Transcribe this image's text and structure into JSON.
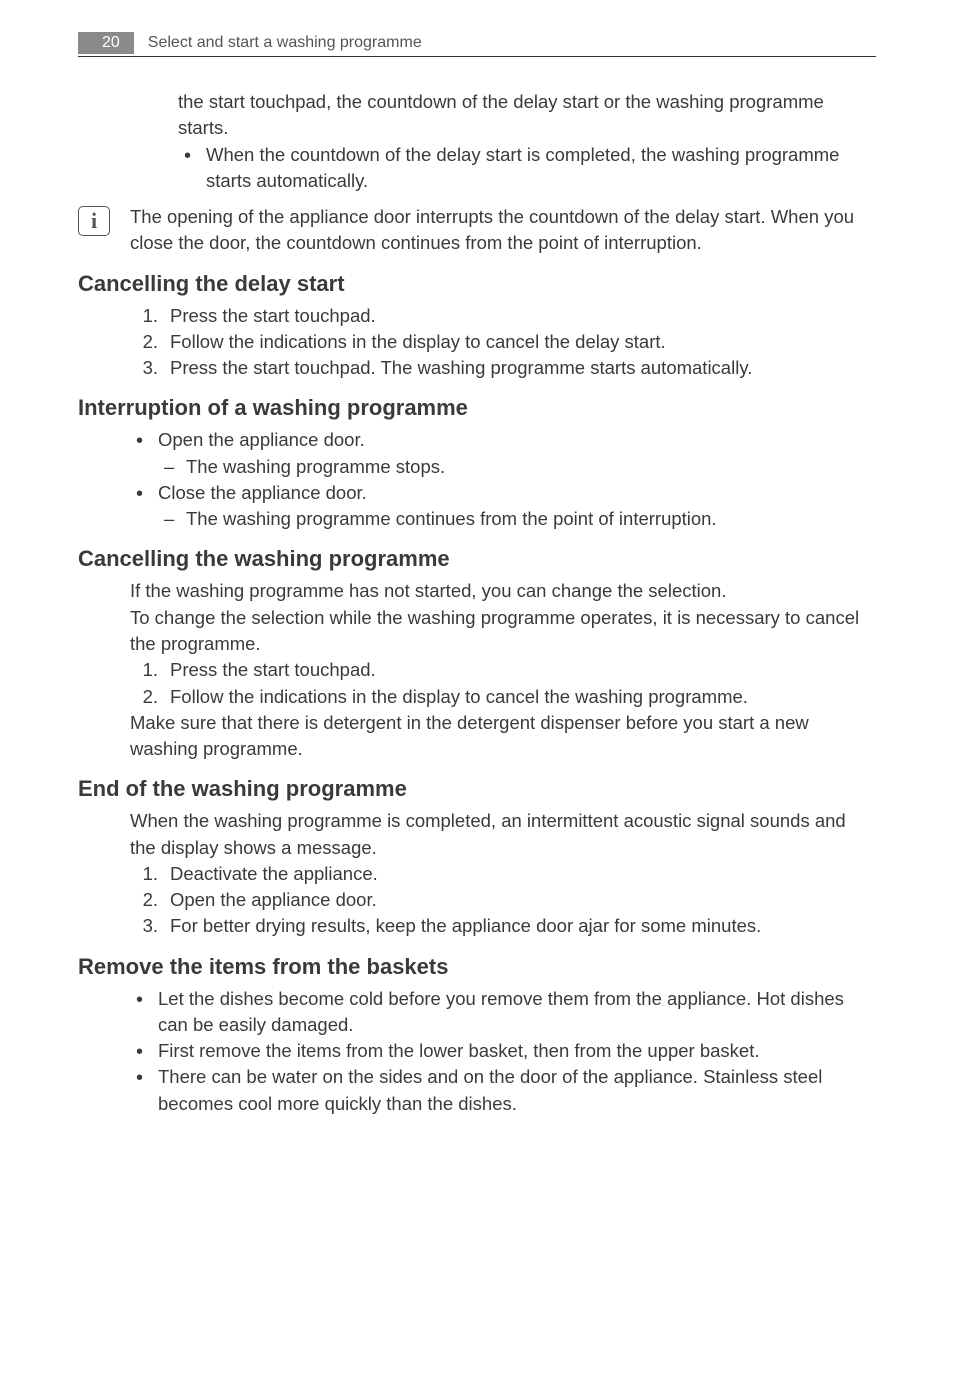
{
  "page": {
    "number": "20",
    "header_title": "Select and start a washing programme"
  },
  "intro": {
    "continuation": "the start touchpad, the countdown of the delay start or the washing programme starts.",
    "bullet1": "When the countdown of the delay start is completed, the washing programme starts automatically."
  },
  "info_note": "The opening of the appliance door interrupts the countdown of the delay start. When you close the door, the countdown continues from the point of interruption.",
  "sections": {
    "cancel_delay": {
      "title": "Cancelling the delay start",
      "steps": [
        "Press the start touchpad.",
        "Follow the indications in the display to cancel the delay start.",
        "Press the start touchpad. The washing programme starts automatically."
      ]
    },
    "interruption": {
      "title": "Interruption of a washing programme",
      "b1": "Open the appliance door.",
      "b1_sub": "The washing programme stops.",
      "b2": "Close the appliance door.",
      "b2_sub": "The washing programme continues from the point of interruption."
    },
    "cancel_wash": {
      "title": "Cancelling the washing programme",
      "p1": "If the washing programme has not started, you can change the selection.",
      "p2": "To change the selection while the washing programme operates, it is necessary to cancel the programme.",
      "steps": [
        "Press the start touchpad.",
        "Follow the indications in the display to cancel the washing programme."
      ],
      "p3": "Make sure that there is detergent in the detergent dispenser before you start a new washing programme."
    },
    "end_wash": {
      "title": "End of the washing programme",
      "p1": "When the washing programme is completed, an intermittent acoustic signal sounds and the display shows a message.",
      "steps": [
        "Deactivate the appliance.",
        "Open the appliance door.",
        "For better drying results, keep the appliance door ajar for some minutes."
      ]
    },
    "remove_items": {
      "title": "Remove the items from the baskets",
      "bullets": [
        "Let the dishes become cold before you remove them from the appliance. Hot dishes can be easily damaged.",
        "First remove the items from the lower basket, then from the upper basket.",
        "There can be water on the sides and on the door of the appliance. Stainless steel becomes cool more quickly than the dishes."
      ]
    }
  }
}
